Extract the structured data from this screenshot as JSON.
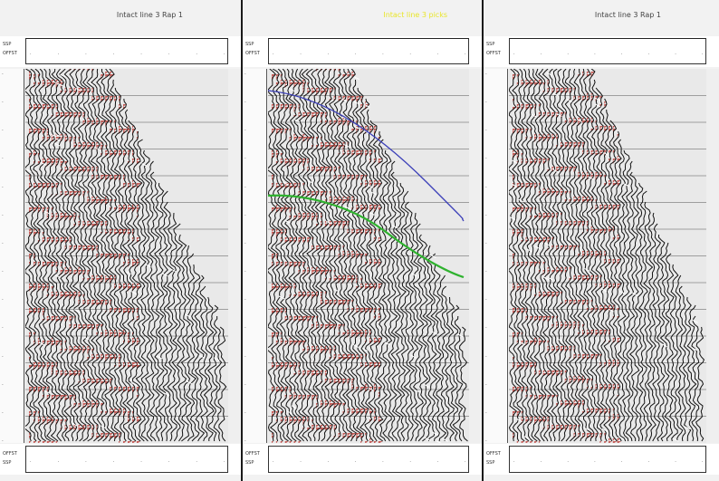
{
  "panels": [
    {
      "title": "Intact line 3 Rap 1"
    },
    {
      "title": "Intact line 3 picks"
    },
    {
      "title": "Intact line 3 Rap 1"
    }
  ],
  "header": {
    "labels": [
      "SSP",
      "OFFST"
    ],
    "field_tag": "OFFST"
  },
  "colors": {
    "wiggle": "#111111",
    "fill": "#c0453f",
    "pick_blue": "#3b3fb8",
    "pick_green": "#2fb22f",
    "title_highlight": "#e9e62a"
  }
}
